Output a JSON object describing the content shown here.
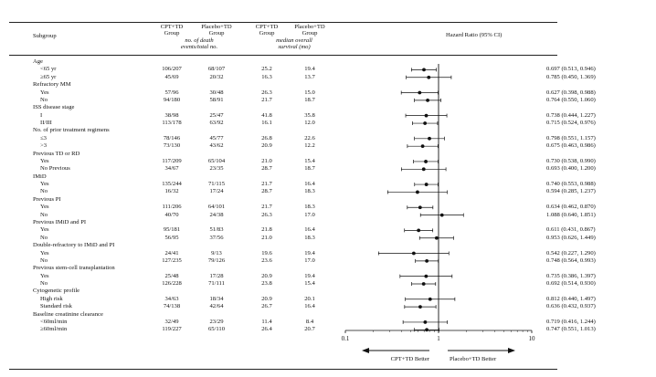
{
  "header": {
    "subgroup_label": "Subgroup",
    "col1": [
      "CPT+TD",
      "Group"
    ],
    "col2": [
      "Placebo+TD",
      "Group"
    ],
    "deaths_note": [
      "no. of death",
      "events/total no."
    ],
    "col3": [
      "CPT+TD",
      "Group"
    ],
    "col4": [
      "Placebo+TD",
      "Group"
    ],
    "survival_note": [
      "median overall",
      "survival (mo)"
    ],
    "hr_label": "Hazard Ratio (95% CI)"
  },
  "rows": [
    {
      "label": "Age",
      "kind": "group"
    },
    {
      "label": "<65 yr",
      "kind": "item",
      "cpt_events": "106/207",
      "pla_events": "68/107",
      "cpt_os": "25.2",
      "pla_os": "19.4",
      "hr_text": "0.697 (0.513, 0.946)"
    },
    {
      "label": "≥65 yr",
      "kind": "item",
      "cpt_events": "45/69",
      "pla_events": "20/32",
      "cpt_os": "16.3",
      "pla_os": "13.7",
      "hr_text": "0.785 (0.450, 1.369)"
    },
    {
      "label": "Refractory MM",
      "kind": "group"
    },
    {
      "label": "Yes",
      "kind": "item",
      "cpt_events": "57/96",
      "pla_events": "30/48",
      "cpt_os": "26.3",
      "pla_os": "15.0",
      "hr_text": "0.627 (0.398, 0.988)"
    },
    {
      "label": "No",
      "kind": "item",
      "cpt_events": "94/180",
      "pla_events": "58/91",
      "cpt_os": "21.7",
      "pla_os": "18.7",
      "hr_text": "0.764 (0.550, 1.060)"
    },
    {
      "label": "ISS disease stage",
      "kind": "group"
    },
    {
      "label": "I",
      "kind": "item",
      "cpt_events": "38/98",
      "pla_events": "25/47",
      "cpt_os": "41.8",
      "pla_os": "35.8",
      "hr_text": "0.738 (0.444, 1.227)"
    },
    {
      "label": "II/III",
      "kind": "item",
      "cpt_events": "113/178",
      "pla_events": "63/92",
      "cpt_os": "16.1",
      "pla_os": "12.0",
      "hr_text": "0.715 (0.524, 0.976)"
    },
    {
      "label": "No. of prior treatment regimens",
      "kind": "group"
    },
    {
      "label": "≤3",
      "kind": "item",
      "cpt_events": "78/146",
      "pla_events": "45/77",
      "cpt_os": "26.8",
      "pla_os": "22.6",
      "hr_text": "0.798 (0.551, 1.157)"
    },
    {
      "label": ">3",
      "kind": "item",
      "cpt_events": "73/130",
      "pla_events": "43/62",
      "cpt_os": "20.9",
      "pla_os": "12.2",
      "hr_text": "0.675 (0.463, 0.986)"
    },
    {
      "label": "Previous TD or RD",
      "kind": "group"
    },
    {
      "label": "Yes",
      "kind": "item",
      "cpt_events": "117/209",
      "pla_events": "65/104",
      "cpt_os": "21.0",
      "pla_os": "15.4",
      "hr_text": "0.730 (0.538, 0.990)"
    },
    {
      "label": "No Previous",
      "kind": "item",
      "cpt_events": "34/67",
      "pla_events": "23/35",
      "cpt_os": "28.7",
      "pla_os": "18.7",
      "hr_text": "0.693 (0.400, 1.200)"
    },
    {
      "label": "IMiD",
      "kind": "group"
    },
    {
      "label": "Yes",
      "kind": "item",
      "cpt_events": "135/244",
      "pla_events": "71/115",
      "cpt_os": "21.7",
      "pla_os": "16.4",
      "hr_text": "0.740 (0.553, 0.988)"
    },
    {
      "label": "No",
      "kind": "item",
      "cpt_events": "16/32",
      "pla_events": "17/24",
      "cpt_os": "28.7",
      "pla_os": "18.3",
      "hr_text": "0.594 (0.285, 1.237)"
    },
    {
      "label": "Previous PI",
      "kind": "group"
    },
    {
      "label": "Yes",
      "kind": "item",
      "cpt_events": "111/206",
      "pla_events": "64/101",
      "cpt_os": "21.7",
      "pla_os": "18.3",
      "hr_text": "0.634 (0.462, 0.870)"
    },
    {
      "label": "No",
      "kind": "item",
      "cpt_events": "40/70",
      "pla_events": "24/38",
      "cpt_os": "26.3",
      "pla_os": "17.0",
      "hr_text": "1.088 (0.640, 1.851)"
    },
    {
      "label": "Previous IMiD and PI",
      "kind": "group"
    },
    {
      "label": "Yes",
      "kind": "item",
      "cpt_events": "95/181",
      "pla_events": "51/83",
      "cpt_os": "21.8",
      "pla_os": "16.4",
      "hr_text": "0.611 (0.431, 0.867)"
    },
    {
      "label": "No",
      "kind": "item",
      "cpt_events": "56/95",
      "pla_events": "37/56",
      "cpt_os": "21.0",
      "pla_os": "18.3",
      "hr_text": "0.953 (0.626, 1.449)"
    },
    {
      "label": "Double-refractory to IMiD and PI",
      "kind": "group"
    },
    {
      "label": "Yes",
      "kind": "item",
      "cpt_events": "24/41",
      "pla_events": "9/13",
      "cpt_os": "19.6",
      "pla_os": "19.4",
      "hr_text": "0.542 (0.227, 1.290)"
    },
    {
      "label": "No",
      "kind": "item",
      "cpt_events": "127/235",
      "pla_events": "79/126",
      "cpt_os": "23.6",
      "pla_os": "17.0",
      "hr_text": "0.748 (0.564, 0.993)"
    },
    {
      "label": "Previous stem-cell transplantation",
      "kind": "group"
    },
    {
      "label": "Yes",
      "kind": "item",
      "cpt_events": "25/48",
      "pla_events": "17/28",
      "cpt_os": "20.9",
      "pla_os": "19.4",
      "hr_text": "0.735 (0.386, 1.397)"
    },
    {
      "label": "No",
      "kind": "item",
      "cpt_events": "126/228",
      "pla_events": "71/111",
      "cpt_os": "23.8",
      "pla_os": "15.4",
      "hr_text": "0.692 (0.514, 0.930)"
    },
    {
      "label": "Cytogenetic profile",
      "kind": "group"
    },
    {
      "label": "High risk",
      "kind": "item",
      "cpt_events": "34/63",
      "pla_events": "18/34",
      "cpt_os": "20.9",
      "pla_os": "20.1",
      "hr_text": "0.812 (0.440, 1.497)"
    },
    {
      "label": "Standard risk",
      "kind": "item",
      "cpt_events": "74/138",
      "pla_events": "42/64",
      "cpt_os": "26.7",
      "pla_os": "16.4",
      "hr_text": "0.636 (0.432, 0.937)"
    },
    {
      "label": "Baseline creatinine clearance",
      "kind": "group"
    },
    {
      "label": "<60ml/min",
      "kind": "item",
      "cpt_events": "32/49",
      "pla_events": "23/29",
      "cpt_os": "11.4",
      "pla_os": "8.4",
      "hr_text": "0.719 (0.416, 1.244)"
    },
    {
      "label": "≥60ml/min",
      "kind": "item",
      "cpt_events": "119/227",
      "pla_events": "65/110",
      "cpt_os": "26.4",
      "pla_os": "20.7",
      "hr_text": "0.747 (0.551, 1.013)"
    }
  ],
  "chart_data": {
    "type": "forest",
    "title": "Hazard Ratio (95% CI)",
    "x_scale": "log",
    "xlim": [
      0.1,
      10
    ],
    "ticks": [
      "0.1",
      "1",
      "10"
    ],
    "reference_line": 1,
    "left_arrow_label": "CPT+TD Better",
    "right_arrow_label": "Placebo+TD Better",
    "series": [
      {
        "name": "<65 yr",
        "hr": 0.697,
        "lo": 0.513,
        "hi": 0.946
      },
      {
        "name": "≥65 yr",
        "hr": 0.785,
        "lo": 0.45,
        "hi": 1.369
      },
      {
        "name": "Refractory MM Yes",
        "hr": 0.627,
        "lo": 0.398,
        "hi": 0.988
      },
      {
        "name": "Refractory MM No",
        "hr": 0.764,
        "lo": 0.55,
        "hi": 1.06
      },
      {
        "name": "ISS I",
        "hr": 0.738,
        "lo": 0.444,
        "hi": 1.227
      },
      {
        "name": "ISS II/III",
        "hr": 0.715,
        "lo": 0.524,
        "hi": 0.976
      },
      {
        "name": "Prior regimens ≤3",
        "hr": 0.798,
        "lo": 0.551,
        "hi": 1.157
      },
      {
        "name": "Prior regimens >3",
        "hr": 0.675,
        "lo": 0.463,
        "hi": 0.986
      },
      {
        "name": "Previous TD or RD Yes",
        "hr": 0.73,
        "lo": 0.538,
        "hi": 0.99
      },
      {
        "name": "No Previous TD or RD",
        "hr": 0.693,
        "lo": 0.4,
        "hi": 1.2
      },
      {
        "name": "IMiD Yes",
        "hr": 0.74,
        "lo": 0.553,
        "hi": 0.988
      },
      {
        "name": "IMiD No",
        "hr": 0.594,
        "lo": 0.285,
        "hi": 1.237
      },
      {
        "name": "Previous PI Yes",
        "hr": 0.634,
        "lo": 0.462,
        "hi": 0.87
      },
      {
        "name": "Previous PI No",
        "hr": 1.088,
        "lo": 0.64,
        "hi": 1.851
      },
      {
        "name": "Previous IMiD and PI Yes",
        "hr": 0.611,
        "lo": 0.431,
        "hi": 0.867
      },
      {
        "name": "Previous IMiD and PI No",
        "hr": 0.953,
        "lo": 0.626,
        "hi": 1.449
      },
      {
        "name": "Double-refractory Yes",
        "hr": 0.542,
        "lo": 0.227,
        "hi": 1.29
      },
      {
        "name": "Double-refractory No",
        "hr": 0.748,
        "lo": 0.564,
        "hi": 0.993
      },
      {
        "name": "Stem-cell transplantation Yes",
        "hr": 0.735,
        "lo": 0.386,
        "hi": 1.397
      },
      {
        "name": "Stem-cell transplantation No",
        "hr": 0.692,
        "lo": 0.514,
        "hi": 0.93
      },
      {
        "name": "Cytogenetic High risk",
        "hr": 0.812,
        "lo": 0.44,
        "hi": 1.497
      },
      {
        "name": "Cytogenetic Standard risk",
        "hr": 0.636,
        "lo": 0.432,
        "hi": 0.937
      },
      {
        "name": "Creatinine clearance <60ml/min",
        "hr": 0.719,
        "lo": 0.416,
        "hi": 1.244
      },
      {
        "name": "Creatinine clearance ≥60ml/min",
        "hr": 0.747,
        "lo": 0.551,
        "hi": 1.013
      }
    ]
  }
}
